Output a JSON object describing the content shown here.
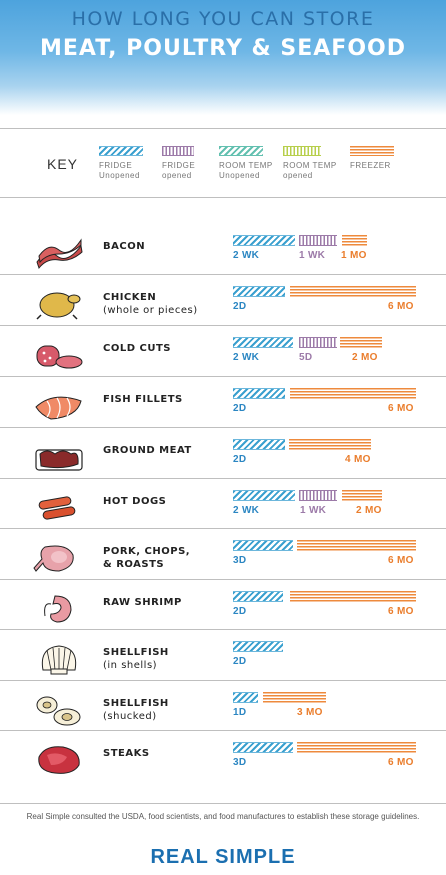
{
  "header": {
    "line1": "HOW LONG YOU CAN STORE",
    "line2": "MEAT, POULTRY & SEAFOOD"
  },
  "key": {
    "label": "KEY",
    "items": [
      {
        "line1": "FRIDGE",
        "line2": "Unopened",
        "pattern": "fu"
      },
      {
        "line1": "FRIDGE",
        "line2": "opened",
        "pattern": "fo"
      },
      {
        "line1": "ROOM TEMP",
        "line2": "Unopened",
        "pattern": "ru"
      },
      {
        "line1": "ROOM TEMP",
        "line2": "opened",
        "pattern": "ro"
      },
      {
        "line1": "FREEZER",
        "line2": "",
        "pattern": "fz"
      }
    ]
  },
  "colors": {
    "fridge_unopened": "#3aa0cf",
    "fridge_opened": "#9c7aa8",
    "room_unopened": "#63c0b0",
    "room_opened": "#b7cf4b",
    "freezer": "#ee8a3c"
  },
  "items": [
    {
      "line1": "BACON",
      "line2": "",
      "icon": "bacon-icon",
      "fridge_unopened": "2 WK",
      "fridge_opened": "1 WK",
      "freezer": "1 MO"
    },
    {
      "line1": "CHICKEN",
      "line2": "(whole or pieces)",
      "icon": "chicken-icon",
      "fridge_unopened": "2D",
      "fridge_opened": "",
      "freezer": "6 MO"
    },
    {
      "line1": "COLD CUTS",
      "line2": "",
      "icon": "cold-cuts-icon",
      "fridge_unopened": "2 WK",
      "fridge_opened": "5D",
      "freezer": "2 MO"
    },
    {
      "line1": "FISH FILLETS",
      "line2": "",
      "icon": "fish-fillet-icon",
      "fridge_unopened": "2D",
      "fridge_opened": "",
      "freezer": "6 MO"
    },
    {
      "line1": "GROUND MEAT",
      "line2": "",
      "icon": "ground-meat-icon",
      "fridge_unopened": "2D",
      "fridge_opened": "",
      "freezer": "4 MO"
    },
    {
      "line1": "HOT DOGS",
      "line2": "",
      "icon": "hot-dog-icon",
      "fridge_unopened": "2 WK",
      "fridge_opened": "1 WK",
      "freezer": "2 MO"
    },
    {
      "line1": "PORK, CHOPS,",
      "line2": "& ROASTS",
      "icon": "pork-chop-icon",
      "fridge_unopened": "3D",
      "fridge_opened": "",
      "freezer": "6 MO"
    },
    {
      "line1": "RAW SHRIMP",
      "line2": "",
      "icon": "shrimp-icon",
      "fridge_unopened": "2D",
      "fridge_opened": "",
      "freezer": "6 MO"
    },
    {
      "line1": "SHELLFISH",
      "line2": "(in shells)",
      "icon": "scallop-shell-icon",
      "fridge_unopened": "2D",
      "fridge_opened": "",
      "freezer": ""
    },
    {
      "line1": "SHELLFISH",
      "line2": "(shucked)",
      "icon": "shucked-shellfish-icon",
      "fridge_unopened": "1D",
      "fridge_opened": "",
      "freezer": "3 MO"
    },
    {
      "line1": "STEAKS",
      "line2": "",
      "icon": "steak-icon",
      "fridge_unopened": "3D",
      "fridge_opened": "",
      "freezer": "6 MO"
    }
  ],
  "footnote": "Real Simple consulted the USDA, food scientists, and food manufactures to establish these storage guidelines.",
  "brand": "REAL SIMPLE"
}
